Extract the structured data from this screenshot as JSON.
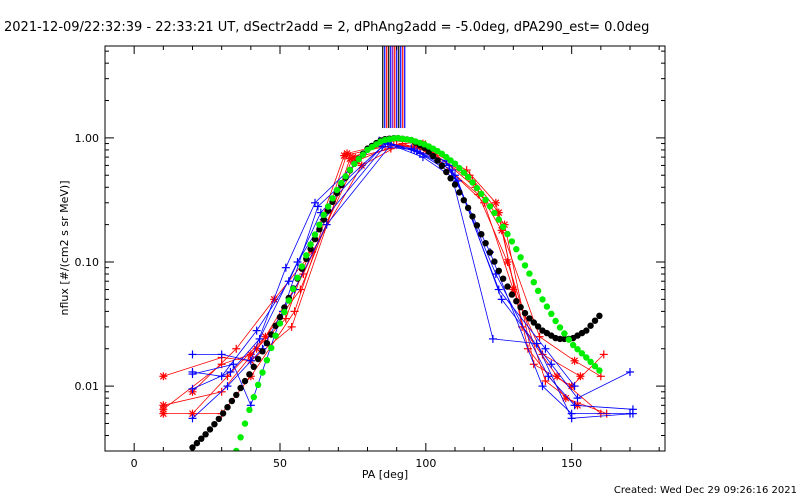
{
  "chart_data": {
    "type": "scatter",
    "title": "2021-12-09/22:32:39 - 22:33:21 UT, dSectr2add = 2, dPhAng2add = -5.0deg, dPA290_est=  0.0deg",
    "xlabel": "PA [deg]",
    "ylabel": "nflux [#/(cm2 s sr MeV)]",
    "xlim": [
      -10,
      182
    ],
    "ylim": [
      0.003,
      5.5
    ],
    "y_scale": "log",
    "x_ticks": [
      0,
      50,
      100,
      150
    ],
    "y_tick_labels": [
      "0.01",
      "0.10",
      "1.00"
    ],
    "footer": "Created: Wed Dec 29 09:26:16 2021",
    "colors": {
      "red": "#ff0000",
      "blue": "#0000ff",
      "black": "#000000",
      "green": "#00ee00"
    },
    "peak_marker": {
      "x_center": 89,
      "y_from": 1.2,
      "y_to": 5.5
    },
    "series": [
      {
        "color": "red",
        "marker": "plus-star",
        "kind": "scan_lines",
        "lines": [
          [
            [
              10,
              0.006
            ],
            [
              30,
              0.006
            ],
            [
              40,
              0.012
            ],
            [
              55,
              0.04
            ],
            [
              73,
              0.75
            ],
            [
              87,
              0.9
            ],
            [
              97,
              0.85
            ],
            [
              115,
              0.5
            ],
            [
              125,
              0.25
            ],
            [
              133,
              0.03
            ],
            [
              145,
              0.012
            ],
            [
              160,
              0.006
            ]
          ],
          [
            [
              10,
              0.007
            ],
            [
              30,
              0.009
            ],
            [
              42,
              0.02
            ],
            [
              57,
              0.06
            ],
            [
              75,
              0.7
            ],
            [
              89,
              0.95
            ],
            [
              99,
              0.9
            ],
            [
              117,
              0.4
            ],
            [
              127,
              0.2
            ],
            [
              137,
              0.015
            ],
            [
              150,
              0.01
            ],
            [
              161,
              0.018
            ]
          ],
          [
            [
              10,
              0.0065
            ],
            [
              30,
              0.015
            ],
            [
              40,
              0.018
            ],
            [
              52,
              0.035
            ],
            [
              72,
              0.72
            ],
            [
              86,
              0.85
            ],
            [
              96,
              0.92
            ],
            [
              114,
              0.55
            ],
            [
              124,
              0.3
            ],
            [
              135,
              0.02
            ],
            [
              148,
              0.008
            ],
            [
              162,
              0.006
            ]
          ],
          [
            [
              10,
              0.012
            ],
            [
              30,
              0.017
            ],
            [
              40,
              0.016
            ],
            [
              54,
              0.03
            ],
            [
              74,
              0.68
            ],
            [
              88,
              0.82
            ],
            [
              98,
              0.88
            ],
            [
              116,
              0.45
            ],
            [
              126,
              0.18
            ],
            [
              139,
              0.025
            ],
            [
              151,
              0.016
            ],
            [
              160,
              0.012
            ]
          ],
          [
            [
              20,
              0.006
            ],
            [
              32,
              0.012
            ],
            [
              45,
              0.025
            ],
            [
              58,
              0.08
            ],
            [
              76,
              0.65
            ],
            [
              90,
              0.88
            ],
            [
              100,
              0.8
            ],
            [
              118,
              0.35
            ],
            [
              128,
              0.1
            ],
            [
              141,
              0.011
            ],
            [
              152,
              0.007
            ]
          ],
          [
            [
              20,
              0.009
            ],
            [
              35,
              0.02
            ],
            [
              48,
              0.05
            ],
            [
              61,
              0.12
            ],
            [
              78,
              0.6
            ],
            [
              92,
              0.9
            ],
            [
              102,
              0.75
            ],
            [
              120,
              0.3
            ],
            [
              130,
              0.06
            ],
            [
              140,
              0.018
            ],
            [
              153,
              0.012
            ]
          ]
        ]
      },
      {
        "color": "blue",
        "marker": "plus",
        "kind": "scan_lines",
        "lines": [
          [
            [
              20,
              0.018
            ],
            [
              30,
              0.018
            ],
            [
              40,
              0.016
            ],
            [
              52,
              0.09
            ],
            [
              62,
              0.3
            ],
            [
              84,
              0.95
            ],
            [
              95,
              0.82
            ],
            [
              107,
              0.65
            ],
            [
              122,
              0.12
            ],
            [
              140,
              0.01
            ],
            [
              150,
              0.006
            ],
            [
              170,
              0.006
            ]
          ],
          [
            [
              20,
              0.013
            ],
            [
              30,
              0.012
            ],
            [
              42,
              0.028
            ],
            [
              53,
              0.07
            ],
            [
              64,
              0.25
            ],
            [
              86,
              0.9
            ],
            [
              97,
              0.78
            ],
            [
              109,
              0.55
            ],
            [
              124,
              0.08
            ],
            [
              142,
              0.012
            ],
            [
              151,
              0.007
            ],
            [
              171,
              0.0065
            ]
          ],
          [
            [
              20,
              0.0055
            ],
            [
              32,
              0.01
            ],
            [
              44,
              0.02
            ],
            [
              55,
              0.06
            ],
            [
              66,
              0.2
            ],
            [
              88,
              0.88
            ],
            [
              99,
              0.7
            ],
            [
              111,
              0.45
            ],
            [
              126,
              0.05
            ],
            [
              143,
              0.015
            ],
            [
              152,
              0.008
            ],
            [
              170,
              0.013
            ]
          ],
          [
            [
              20,
              0.0125
            ],
            [
              34,
              0.015
            ],
            [
              40,
              0.007
            ],
            [
              51,
              0.04
            ],
            [
              63,
              0.28
            ],
            [
              85,
              0.85
            ],
            [
              96,
              0.8
            ],
            [
              108,
              0.6
            ],
            [
              123,
              0.024
            ],
            [
              138,
              0.022
            ],
            [
              150,
              0.0055
            ],
            [
              171,
              0.006
            ]
          ],
          [
            [
              20,
              0.0095
            ],
            [
              33,
              0.013
            ],
            [
              43,
              0.024
            ],
            [
              56,
              0.1
            ],
            [
              65,
              0.22
            ],
            [
              87,
              0.92
            ],
            [
              98,
              0.75
            ],
            [
              110,
              0.5
            ],
            [
              125,
              0.06
            ],
            [
              141,
              0.02
            ],
            [
              151,
              0.01
            ]
          ]
        ]
      },
      {
        "color": "black",
        "marker": "dot",
        "kind": "curve",
        "x": [
          20,
          25,
          30,
          35,
          40,
          45,
          50,
          55,
          60,
          65,
          70,
          75,
          80,
          85,
          90,
          95,
          100,
          105,
          110,
          115,
          120,
          125,
          130,
          135,
          140,
          145,
          150,
          155,
          160
        ],
        "y": [
          0.0032,
          0.0042,
          0.0058,
          0.0085,
          0.013,
          0.021,
          0.036,
          0.065,
          0.12,
          0.22,
          0.38,
          0.6,
          0.82,
          0.97,
          1.0,
          0.96,
          0.82,
          0.62,
          0.42,
          0.26,
          0.15,
          0.085,
          0.052,
          0.036,
          0.028,
          0.024,
          0.024,
          0.028,
          0.038
        ]
      },
      {
        "color": "green",
        "marker": "dot",
        "kind": "curve",
        "x": [
          35,
          40,
          45,
          50,
          55,
          60,
          65,
          70,
          75,
          80,
          85,
          90,
          95,
          100,
          105,
          110,
          115,
          120,
          125,
          130,
          135,
          140,
          145,
          150,
          155,
          160
        ],
        "y": [
          0.003,
          0.007,
          0.015,
          0.032,
          0.065,
          0.13,
          0.24,
          0.4,
          0.6,
          0.8,
          0.95,
          1.0,
          0.96,
          0.88,
          0.76,
          0.62,
          0.47,
          0.33,
          0.22,
          0.14,
          0.085,
          0.05,
          0.032,
          0.022,
          0.017,
          0.013
        ]
      }
    ]
  }
}
